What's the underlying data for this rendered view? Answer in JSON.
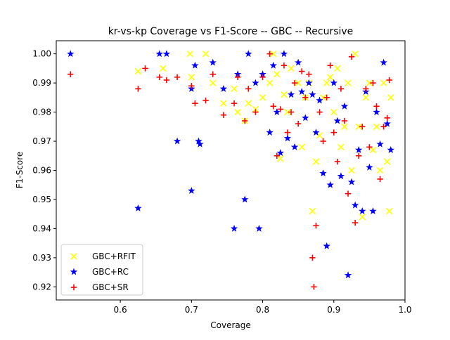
{
  "chart_data": {
    "type": "scatter",
    "title": "kr-vs-kp Coverage vs F1-Score -- GBC -- Recursive",
    "xlabel": "Coverage",
    "ylabel": "F1-Score",
    "xlim": [
      0.51,
      1.0
    ],
    "ylim": [
      0.9155,
      1.0045
    ],
    "xticks": [
      0.6,
      0.7,
      0.8,
      0.9,
      1.0
    ],
    "xtick_labels": [
      "0.6",
      "0.7",
      "0.8",
      "0.9",
      "1.0"
    ],
    "yticks": [
      0.92,
      0.93,
      0.94,
      0.95,
      0.96,
      0.97,
      0.98,
      0.99,
      1.0
    ],
    "ytick_labels": [
      "0.92",
      "0.93",
      "0.94",
      "0.95",
      "0.96",
      "0.97",
      "0.98",
      "0.99",
      "1.00"
    ],
    "grid": false,
    "legend_position": "lower-left",
    "series": [
      {
        "name": "GBC+RFIT",
        "marker": "x",
        "color": "#ffff00",
        "points": [
          [
            0.625,
            0.994
          ],
          [
            0.66,
            0.995
          ],
          [
            0.698,
            1.0
          ],
          [
            0.7,
            0.992
          ],
          [
            0.72,
            1.0
          ],
          [
            0.73,
            0.99
          ],
          [
            0.745,
            0.983
          ],
          [
            0.76,
            0.988
          ],
          [
            0.765,
            0.98
          ],
          [
            0.775,
            0.977
          ],
          [
            0.78,
            0.983
          ],
          [
            0.79,
            0.981
          ],
          [
            0.8,
            0.985
          ],
          [
            0.81,
            0.99
          ],
          [
            0.815,
            1.0
          ],
          [
            0.82,
            0.993
          ],
          [
            0.825,
            0.964
          ],
          [
            0.83,
            0.986
          ],
          [
            0.835,
            0.98
          ],
          [
            0.84,
            0.995
          ],
          [
            0.85,
            0.99
          ],
          [
            0.855,
            0.968
          ],
          [
            0.86,
            0.985
          ],
          [
            0.865,
            0.99
          ],
          [
            0.87,
            0.946
          ],
          [
            0.875,
            0.963
          ],
          [
            0.88,
            0.972
          ],
          [
            0.885,
            0.985
          ],
          [
            0.89,
            0.99
          ],
          [
            0.895,
            0.992
          ],
          [
            0.9,
            0.98
          ],
          [
            0.905,
            0.995
          ],
          [
            0.91,
            0.968
          ],
          [
            0.915,
            0.975
          ],
          [
            0.92,
            0.99
          ],
          [
            0.925,
            0.96
          ],
          [
            0.93,
            1.0
          ],
          [
            0.935,
            0.975
          ],
          [
            0.94,
            0.944
          ],
          [
            0.945,
            0.985
          ],
          [
            0.95,
            0.99
          ],
          [
            0.955,
            0.967
          ],
          [
            0.96,
            0.975
          ],
          [
            0.965,
            0.96
          ],
          [
            0.97,
            0.99
          ],
          [
            0.975,
            0.963
          ],
          [
            0.978,
            0.946
          ],
          [
            0.98,
            0.985
          ]
        ]
      },
      {
        "name": "GBC+RC",
        "marker": "star",
        "color": "#0000ff",
        "points": [
          [
            0.53,
            1.0
          ],
          [
            0.625,
            0.947
          ],
          [
            0.655,
            1.0
          ],
          [
            0.665,
            1.0
          ],
          [
            0.68,
            0.97
          ],
          [
            0.7,
            0.953
          ],
          [
            0.7,
            0.988
          ],
          [
            0.705,
            0.996
          ],
          [
            0.71,
            0.97
          ],
          [
            0.712,
            0.969
          ],
          [
            0.73,
            0.997
          ],
          [
            0.745,
            0.988
          ],
          [
            0.76,
            0.94
          ],
          [
            0.765,
            0.993
          ],
          [
            0.775,
            0.95
          ],
          [
            0.78,
            1.0
          ],
          [
            0.79,
            0.99
          ],
          [
            0.795,
            0.94
          ],
          [
            0.8,
            0.993
          ],
          [
            0.81,
            0.973
          ],
          [
            0.815,
            0.996
          ],
          [
            0.82,
            0.98
          ],
          [
            0.825,
            0.966
          ],
          [
            0.83,
            1.0
          ],
          [
            0.835,
            0.971
          ],
          [
            0.84,
            0.986
          ],
          [
            0.845,
            0.968
          ],
          [
            0.85,
            0.997
          ],
          [
            0.855,
            0.987
          ],
          [
            0.86,
            0.978
          ],
          [
            0.865,
            0.99
          ],
          [
            0.87,
            0.986
          ],
          [
            0.875,
            0.973
          ],
          [
            0.88,
            0.984
          ],
          [
            0.885,
            0.959
          ],
          [
            0.89,
            0.934
          ],
          [
            0.895,
            0.955
          ],
          [
            0.9,
            0.99
          ],
          [
            0.905,
            0.977
          ],
          [
            0.91,
            0.958
          ],
          [
            0.915,
            0.982
          ],
          [
            0.92,
            0.924
          ],
          [
            0.925,
            0.956
          ],
          [
            0.93,
            0.948
          ],
          [
            0.935,
            0.967
          ],
          [
            0.94,
            0.946
          ],
          [
            0.945,
            0.987
          ],
          [
            0.95,
            0.961
          ],
          [
            0.955,
            0.946
          ],
          [
            0.96,
            0.98
          ],
          [
            0.965,
            0.969
          ],
          [
            0.97,
            0.997
          ],
          [
            0.975,
            0.976
          ],
          [
            0.98,
            0.967
          ]
        ]
      },
      {
        "name": "GBC+SR",
        "marker": "plus",
        "color": "#ff0000",
        "points": [
          [
            0.53,
            0.993
          ],
          [
            0.625,
            0.988
          ],
          [
            0.635,
            0.995
          ],
          [
            0.655,
            0.992
          ],
          [
            0.665,
            0.991
          ],
          [
            0.68,
            0.992
          ],
          [
            0.7,
            0.989
          ],
          [
            0.705,
            0.983
          ],
          [
            0.72,
            0.984
          ],
          [
            0.73,
            0.993
          ],
          [
            0.745,
            0.979
          ],
          [
            0.76,
            0.983
          ],
          [
            0.765,
            0.992
          ],
          [
            0.775,
            0.977
          ],
          [
            0.78,
            0.988
          ],
          [
            0.79,
            0.98
          ],
          [
            0.8,
            0.992
          ],
          [
            0.81,
            1.0
          ],
          [
            0.815,
            0.982
          ],
          [
            0.82,
            0.965
          ],
          [
            0.825,
            0.981
          ],
          [
            0.83,
            0.996
          ],
          [
            0.835,
            0.973
          ],
          [
            0.84,
            0.98
          ],
          [
            0.845,
            0.99
          ],
          [
            0.85,
            0.976
          ],
          [
            0.855,
            0.994
          ],
          [
            0.86,
            0.985
          ],
          [
            0.865,
            0.993
          ],
          [
            0.87,
            0.93
          ],
          [
            0.872,
            0.92
          ],
          [
            0.875,
            0.941
          ],
          [
            0.88,
            0.98
          ],
          [
            0.885,
            0.97
          ],
          [
            0.89,
            0.985
          ],
          [
            0.895,
            0.996
          ],
          [
            0.9,
            0.973
          ],
          [
            0.905,
            0.963
          ],
          [
            0.91,
            0.988
          ],
          [
            0.915,
            0.977
          ],
          [
            0.92,
            0.952
          ],
          [
            0.925,
            0.999
          ],
          [
            0.93,
            0.942
          ],
          [
            0.935,
            0.965
          ],
          [
            0.94,
            0.975
          ],
          [
            0.945,
            0.988
          ],
          [
            0.95,
            0.968
          ],
          [
            0.955,
            0.99
          ],
          [
            0.96,
            0.982
          ],
          [
            0.965,
            0.957
          ],
          [
            0.97,
            0.975
          ],
          [
            0.975,
            0.978
          ],
          [
            0.978,
            0.991
          ]
        ]
      }
    ]
  }
}
